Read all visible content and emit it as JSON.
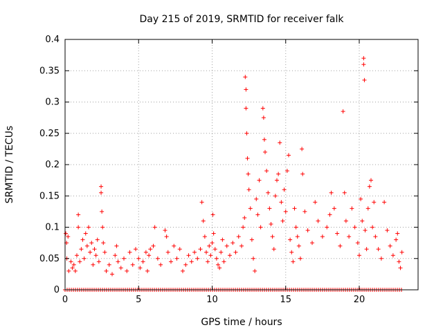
{
  "chart_data": {
    "type": "scatter",
    "title": "Day 215 of 2019, SRMTID for receiver falk",
    "xlabel": "GPS time / hours",
    "ylabel": "SRMTID / TECUs",
    "xlim": [
      0,
      24
    ],
    "ylim": [
      0,
      0.4
    ],
    "xticks": [
      0,
      5,
      10,
      15,
      20
    ],
    "xtick_labels": [
      "0",
      "5",
      "10",
      "15",
      "20"
    ],
    "yticks": [
      0,
      0.05,
      0.1,
      0.15,
      0.2,
      0.25,
      0.3,
      0.35,
      0.4
    ],
    "ytick_labels": [
      "0",
      "0.05",
      "0.1",
      "0.15",
      "0.2",
      "0.25",
      "0.3",
      "0.35",
      "0.4"
    ],
    "grid": true,
    "marker": "plus",
    "color": "#ff0000",
    "baseline_range": [
      0,
      23
    ],
    "series": [
      {
        "name": "SRMTID",
        "points": [
          [
            0.05,
            0.09
          ],
          [
            0.1,
            0.075
          ],
          [
            0.12,
            0.05
          ],
          [
            0.2,
            0.085
          ],
          [
            0.25,
            0.03
          ],
          [
            0.4,
            0.045
          ],
          [
            0.5,
            0.035
          ],
          [
            0.6,
            0.04
          ],
          [
            0.7,
            0.03
          ],
          [
            0.8,
            0.055
          ],
          [
            0.9,
            0.12
          ],
          [
            0.9,
            0.1
          ],
          [
            1.0,
            0.045
          ],
          [
            1.1,
            0.065
          ],
          [
            1.2,
            0.08
          ],
          [
            1.3,
            0.05
          ],
          [
            1.4,
            0.09
          ],
          [
            1.5,
            0.07
          ],
          [
            1.6,
            0.1
          ],
          [
            1.7,
            0.06
          ],
          [
            1.8,
            0.075
          ],
          [
            1.9,
            0.04
          ],
          [
            2.0,
            0.065
          ],
          [
            2.1,
            0.055
          ],
          [
            2.2,
            0.08
          ],
          [
            2.3,
            0.045
          ],
          [
            2.45,
            0.165
          ],
          [
            2.45,
            0.155
          ],
          [
            2.5,
            0.125
          ],
          [
            2.55,
            0.1
          ],
          [
            2.6,
            0.075
          ],
          [
            2.7,
            0.06
          ],
          [
            2.8,
            0.03
          ],
          [
            3.0,
            0.04
          ],
          [
            3.2,
            0.025
          ],
          [
            3.4,
            0.055
          ],
          [
            3.5,
            0.07
          ],
          [
            3.6,
            0.045
          ],
          [
            3.8,
            0.035
          ],
          [
            4.0,
            0.05
          ],
          [
            4.2,
            0.03
          ],
          [
            4.4,
            0.06
          ],
          [
            4.6,
            0.04
          ],
          [
            4.8,
            0.065
          ],
          [
            5.0,
            0.05
          ],
          [
            5.1,
            0.035
          ],
          [
            5.3,
            0.045
          ],
          [
            5.5,
            0.06
          ],
          [
            5.6,
            0.03
          ],
          [
            5.7,
            0.055
          ],
          [
            5.8,
            0.065
          ],
          [
            6.0,
            0.07
          ],
          [
            6.1,
            0.1
          ],
          [
            6.3,
            0.05
          ],
          [
            6.5,
            0.04
          ],
          [
            6.8,
            0.095
          ],
          [
            6.9,
            0.085
          ],
          [
            7.0,
            0.06
          ],
          [
            7.2,
            0.045
          ],
          [
            7.4,
            0.07
          ],
          [
            7.6,
            0.05
          ],
          [
            7.8,
            0.065
          ],
          [
            8.0,
            0.03
          ],
          [
            8.2,
            0.04
          ],
          [
            8.4,
            0.055
          ],
          [
            8.6,
            0.045
          ],
          [
            8.8,
            0.06
          ],
          [
            9.0,
            0.05
          ],
          [
            9.2,
            0.065
          ],
          [
            9.3,
            0.14
          ],
          [
            9.4,
            0.11
          ],
          [
            9.5,
            0.085
          ],
          [
            9.6,
            0.06
          ],
          [
            9.7,
            0.045
          ],
          [
            9.8,
            0.07
          ],
          [
            9.9,
            0.055
          ],
          [
            10.0,
            0.075
          ],
          [
            10.05,
            0.12
          ],
          [
            10.1,
            0.09
          ],
          [
            10.2,
            0.065
          ],
          [
            10.3,
            0.05
          ],
          [
            10.4,
            0.04
          ],
          [
            10.5,
            0.035
          ],
          [
            10.6,
            0.06
          ],
          [
            10.7,
            0.08
          ],
          [
            10.8,
            0.045
          ],
          [
            11.0,
            0.07
          ],
          [
            11.2,
            0.055
          ],
          [
            11.4,
            0.075
          ],
          [
            11.6,
            0.06
          ],
          [
            11.8,
            0.085
          ],
          [
            12.0,
            0.07
          ],
          [
            12.1,
            0.1
          ],
          [
            12.2,
            0.115
          ],
          [
            12.25,
            0.34
          ],
          [
            12.3,
            0.32
          ],
          [
            12.3,
            0.29
          ],
          [
            12.35,
            0.25
          ],
          [
            12.4,
            0.21
          ],
          [
            12.45,
            0.185
          ],
          [
            12.5,
            0.16
          ],
          [
            12.6,
            0.13
          ],
          [
            12.7,
            0.08
          ],
          [
            12.8,
            0.05
          ],
          [
            12.9,
            0.03
          ],
          [
            13.0,
            0.145
          ],
          [
            13.1,
            0.12
          ],
          [
            13.2,
            0.175
          ],
          [
            13.3,
            0.1
          ],
          [
            13.45,
            0.29
          ],
          [
            13.5,
            0.275
          ],
          [
            13.55,
            0.24
          ],
          [
            13.6,
            0.22
          ],
          [
            13.7,
            0.19
          ],
          [
            13.8,
            0.155
          ],
          [
            13.9,
            0.13
          ],
          [
            14.0,
            0.105
          ],
          [
            14.1,
            0.085
          ],
          [
            14.2,
            0.065
          ],
          [
            14.3,
            0.15
          ],
          [
            14.4,
            0.175
          ],
          [
            14.5,
            0.185
          ],
          [
            14.6,
            0.235
          ],
          [
            14.7,
            0.14
          ],
          [
            14.8,
            0.11
          ],
          [
            14.9,
            0.16
          ],
          [
            15.0,
            0.125
          ],
          [
            15.1,
            0.19
          ],
          [
            15.2,
            0.215
          ],
          [
            15.3,
            0.08
          ],
          [
            15.4,
            0.06
          ],
          [
            15.5,
            0.045
          ],
          [
            15.6,
            0.13
          ],
          [
            15.7,
            0.1
          ],
          [
            15.8,
            0.085
          ],
          [
            15.9,
            0.07
          ],
          [
            16.0,
            0.05
          ],
          [
            16.1,
            0.225
          ],
          [
            16.15,
            0.185
          ],
          [
            16.3,
            0.125
          ],
          [
            16.5,
            0.095
          ],
          [
            16.8,
            0.075
          ],
          [
            17.0,
            0.14
          ],
          [
            17.2,
            0.11
          ],
          [
            17.5,
            0.085
          ],
          [
            17.8,
            0.1
          ],
          [
            18.0,
            0.12
          ],
          [
            18.1,
            0.155
          ],
          [
            18.3,
            0.13
          ],
          [
            18.5,
            0.09
          ],
          [
            18.7,
            0.07
          ],
          [
            18.9,
            0.285
          ],
          [
            19.0,
            0.155
          ],
          [
            19.1,
            0.11
          ],
          [
            19.3,
            0.085
          ],
          [
            19.5,
            0.13
          ],
          [
            19.7,
            0.1
          ],
          [
            19.9,
            0.075
          ],
          [
            20.0,
            0.055
          ],
          [
            20.1,
            0.145
          ],
          [
            20.2,
            0.11
          ],
          [
            20.3,
            0.37
          ],
          [
            20.3,
            0.36
          ],
          [
            20.35,
            0.335
          ],
          [
            20.4,
            0.095
          ],
          [
            20.5,
            0.065
          ],
          [
            20.6,
            0.13
          ],
          [
            20.7,
            0.165
          ],
          [
            20.8,
            0.175
          ],
          [
            20.9,
            0.1
          ],
          [
            21.0,
            0.14
          ],
          [
            21.1,
            0.085
          ],
          [
            21.3,
            0.065
          ],
          [
            21.5,
            0.05
          ],
          [
            21.7,
            0.14
          ],
          [
            21.9,
            0.095
          ],
          [
            22.1,
            0.07
          ],
          [
            22.3,
            0.055
          ],
          [
            22.5,
            0.08
          ],
          [
            22.6,
            0.09
          ],
          [
            22.7,
            0.045
          ],
          [
            22.8,
            0.035
          ],
          [
            22.9,
            0.06
          ]
        ]
      }
    ]
  }
}
